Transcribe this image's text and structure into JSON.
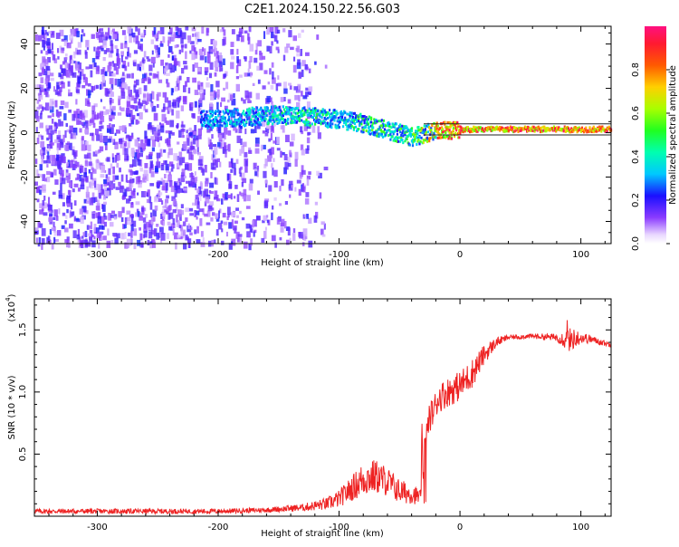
{
  "title": "C2E1.2024.150.22.56.G03",
  "colors": {
    "spectrum_dark": "#5b00ff",
    "spectrum_light": "#d8c8ff",
    "band_cyan": "#00e0ff",
    "band_green": "#33ff66",
    "band_red": "#ff2a2a",
    "snr_line": "#ee2222"
  },
  "chart_data": [
    {
      "type": "heatmap",
      "xlabel": "Height of straight line (km)",
      "ylabel": "Frequency (Hz)",
      "xlim": [
        -352,
        125
      ],
      "ylim": [
        -50,
        48
      ],
      "x_ticks": [
        -300,
        -200,
        -100,
        0,
        100
      ],
      "x_tick_labels": [
        "-300",
        "-200",
        "-100",
        "0",
        "100"
      ],
      "y_ticks": [
        -40,
        -20,
        0,
        20,
        40
      ],
      "y_tick_labels": [
        "-40",
        "-20",
        "0",
        "20",
        "40"
      ],
      "colorbar": {
        "label": "Normalized spectral amplitude",
        "ticks": [
          0.0,
          0.2,
          0.4,
          0.6,
          0.8
        ],
        "tick_labels": [
          "0.0",
          "0.2",
          "0.4",
          "0.6",
          "0.8"
        ],
        "range": [
          0.0,
          1.0
        ],
        "colormap": "rainbow (purple-blue-cyan-green-yellow-red-magenta)"
      },
      "main_band": {
        "points": [
          {
            "x": -210,
            "freq": 6,
            "amp": 0.35
          },
          {
            "x": -180,
            "freq": 7,
            "amp": 0.4
          },
          {
            "x": -150,
            "freq": 8,
            "amp": 0.45
          },
          {
            "x": -120,
            "freq": 7,
            "amp": 0.5
          },
          {
            "x": -100,
            "freq": 6,
            "amp": 0.4
          },
          {
            "x": -80,
            "freq": 4,
            "amp": 0.55
          },
          {
            "x": -60,
            "freq": 1,
            "amp": 0.5
          },
          {
            "x": -40,
            "freq": -2,
            "amp": 0.55
          },
          {
            "x": -20,
            "freq": 1,
            "amp": 0.85
          },
          {
            "x": 0,
            "freq": 1.5,
            "amp": 0.9
          },
          {
            "x": 40,
            "freq": 1.5,
            "amp": 0.92
          },
          {
            "x": 80,
            "freq": 1.5,
            "amp": 0.92
          },
          {
            "x": 125,
            "freq": 1.5,
            "amp": 0.92
          }
        ]
      },
      "grid": false
    },
    {
      "type": "line",
      "xlabel": "Height of straight line (km)",
      "ylabel": "SNR (10 * v/v)",
      "y_multiplier_label": "(x10",
      "y_multiplier_exp": "4",
      "y_multiplier_close": ")",
      "xlim": [
        -352,
        125
      ],
      "ylim": [
        0,
        1.75
      ],
      "x_ticks": [
        -300,
        -200,
        -100,
        0,
        100
      ],
      "x_tick_labels": [
        "-300",
        "-200",
        "-100",
        "0",
        "100"
      ],
      "y_ticks": [
        0.5,
        1.0,
        1.5
      ],
      "y_tick_labels": [
        "0.5",
        "1.0",
        "1.5"
      ],
      "series": [
        {
          "x": [
            -352,
            -300,
            -250,
            -200,
            -160,
            -130,
            -110,
            -100,
            -90,
            -80,
            -70,
            -60,
            -50,
            -40,
            -32,
            -28,
            -25,
            -22,
            -18,
            -10,
            0,
            10,
            20,
            30,
            40,
            60,
            80,
            90,
            100,
            110,
            125
          ],
          "y": [
            0.04,
            0.04,
            0.04,
            0.04,
            0.05,
            0.07,
            0.1,
            0.14,
            0.22,
            0.3,
            0.32,
            0.28,
            0.2,
            0.18,
            0.15,
            0.65,
            0.8,
            0.85,
            0.95,
            1.0,
            1.05,
            1.15,
            1.3,
            1.4,
            1.44,
            1.45,
            1.44,
            1.42,
            1.44,
            1.42,
            1.38
          ],
          "noise": [
            0.02,
            0.02,
            0.02,
            0.02,
            0.02,
            0.03,
            0.05,
            0.07,
            0.1,
            0.14,
            0.14,
            0.12,
            0.1,
            0.08,
            0.06,
            0.1,
            0.12,
            0.12,
            0.12,
            0.12,
            0.12,
            0.12,
            0.08,
            0.04,
            0.02,
            0.02,
            0.03,
            0.1,
            0.05,
            0.03,
            0.02
          ]
        }
      ],
      "grid": false
    }
  ]
}
